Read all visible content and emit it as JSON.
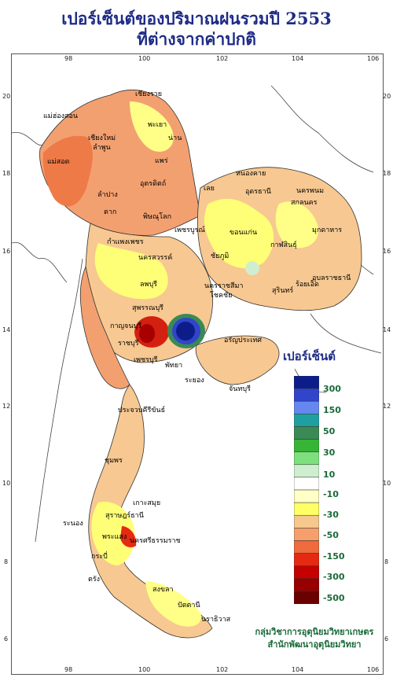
{
  "title_line1": "เปอร์เซ็นต์ของปริมาณฝนรวมปี  2553",
  "title_line2": "ที่ต่างจากค่าปกติ",
  "axis": {
    "lon_ticks": [
      "98",
      "100",
      "102",
      "104",
      "106"
    ],
    "lat_ticks": [
      "20",
      "18",
      "16",
      "14",
      "12",
      "10",
      "8",
      "6"
    ]
  },
  "legend": {
    "title": "เปอร์เซ็นต์",
    "labels": [
      "300",
      "150",
      "50",
      "30",
      "10",
      "-10",
      "-30",
      "-50",
      "-150",
      "-300",
      "-500"
    ],
    "colors": [
      "#0c1d8a",
      "#3045c9",
      "#6688ee",
      "#1fa0a0",
      "#3a8a55",
      "#36b436",
      "#7de07d",
      "#cfeecf",
      "#ffffff",
      "#ffffc8",
      "#ffff66",
      "#f6c88e",
      "#f5a06c",
      "#ef6a3c",
      "#e42a12",
      "#c40000",
      "#960000",
      "#6a0000"
    ]
  },
  "credit": {
    "line1": "กลุ่มวิชาการอุตุนิยมวิทยาเกษตร",
    "line2": "สำนักพัฒนาอุตุนิยมวิทยา"
  },
  "provinces": [
    "เชียงราย",
    "แม่ฮ่องสอน",
    "เชียงใหม่",
    "ลำพูน",
    "พะเยา",
    "น่าน",
    "แพร่",
    "แม่สอด",
    "อุตรดิตถ์",
    "ลำปาง",
    "ตาก",
    "พิษณุโลก",
    "เพชรบูรณ์",
    "เลย",
    "หนองคาย",
    "อุดรธานี",
    "นครพนม",
    "สกลนคร",
    "มุกดาหาร",
    "ขอนแก่น",
    "กำแพงเพชร",
    "นครสวรรค์",
    "ชัยภูมิ",
    "กาฬสินธุ์",
    "อุบลราชธานี",
    "ร้อยเอ็ด",
    "สุรินทร์",
    "ลพบุรี",
    "นครราชสีมา",
    "โชคชัย",
    "สุพรรณบุรี",
    "กาญจนบุรี",
    "ราชบุรี",
    "อรัญประเทศ",
    "เพชรบุรี",
    "ระยอง",
    "พัทยา",
    "จันทบุรี",
    "ประจวบคีรีขันธ์",
    "ชุมพร",
    "เกาะสมุย",
    "ระนอง",
    "สุราษฎร์ธานี",
    "พระแสง",
    "นครศรีธรรมราช",
    "กระบี่",
    "ตรัง",
    "สงขลา",
    "ปัตตานี",
    "นราธิวาส"
  ]
}
